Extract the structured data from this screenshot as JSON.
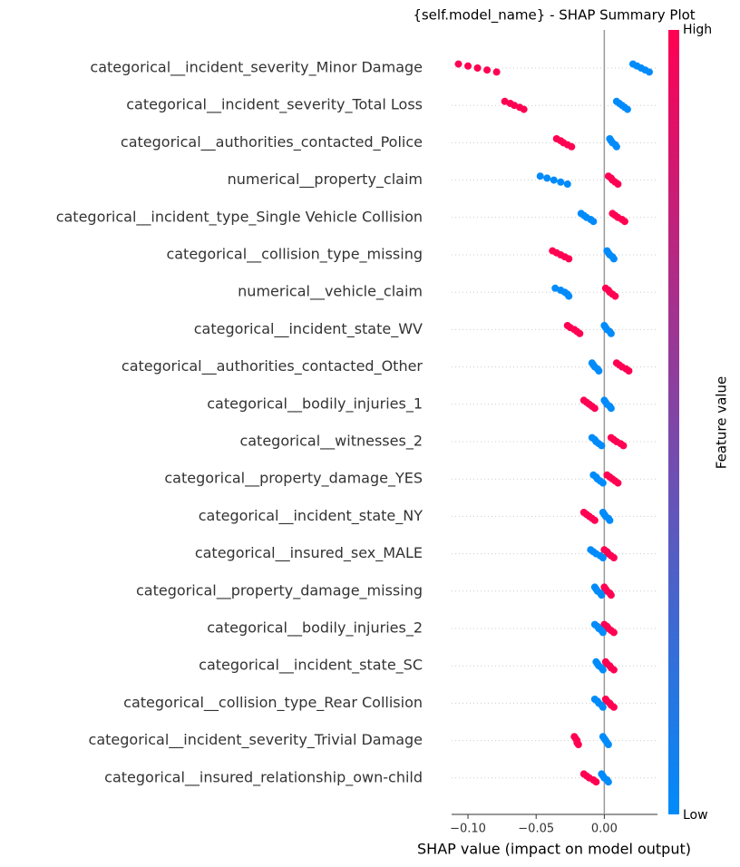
{
  "chart_data": {
    "type": "beeswarm",
    "title": "{self.model_name} - SHAP Summary Plot",
    "x_label": "SHAP value (impact on model output)",
    "colorbar_label": "Feature value",
    "categories": [
      "categorical__incident_severity_Minor Damage",
      "categorical__incident_severity_Total Loss",
      "categorical__authorities_contacted_Police",
      "numerical__property_claim",
      "categorical__incident_type_Single Vehicle Collision",
      "categorical__collision_type_missing",
      "numerical__vehicle_claim",
      "categorical__incident_state_WV",
      "categorical__authorities_contacted_Other",
      "categorical__bodily_injuries_1",
      "categorical__witnesses_2",
      "categorical__property_damage_YES",
      "categorical__incident_state_NY",
      "categorical__insured_sex_MALE",
      "categorical__property_damage_missing",
      "categorical__bodily_injuries_2",
      "categorical__incident_state_SC",
      "categorical__collision_type_Rear Collision",
      "categorical__incident_severity_Trivial Damage",
      "categorical__insured_relationship_own-child"
    ],
    "series": [
      {
        "name": "High",
        "color": "#ff0052",
        "values": [
          [
            -0.107,
            -0.1,
            -0.093,
            -0.086,
            -0.079
          ],
          [
            -0.073,
            -0.069,
            -0.066,
            -0.062,
            -0.059
          ],
          [
            -0.035,
            -0.032,
            -0.03,
            -0.027,
            -0.024
          ],
          [
            0.003,
            0.005,
            0.006,
            0.008,
            0.01
          ],
          [
            0.006,
            0.008,
            0.01,
            0.013,
            0.015
          ],
          [
            -0.038,
            -0.035,
            -0.032,
            -0.029,
            -0.026
          ],
          [
            0.001,
            0.003,
            0.004,
            0.006,
            0.008
          ],
          [
            -0.027,
            -0.025,
            -0.022,
            -0.02,
            -0.018
          ],
          [
            0.009,
            0.011,
            0.013,
            0.016,
            0.018
          ],
          [
            -0.015,
            -0.013,
            -0.011,
            -0.009,
            -0.007
          ],
          [
            0.005,
            0.007,
            0.009,
            0.012,
            0.014
          ],
          [
            0.002,
            0.004,
            0.006,
            0.008,
            0.01
          ],
          [
            -0.015,
            -0.013,
            -0.011,
            -0.009,
            -0.007
          ],
          [
            0.0,
            0.002,
            0.003,
            0.005,
            0.007
          ],
          [
            0.0,
            0.001,
            0.002,
            0.004,
            0.005
          ],
          [
            0.0,
            0.002,
            0.003,
            0.005,
            0.007
          ],
          [
            0.001,
            0.002,
            0.004,
            0.005,
            0.007
          ],
          [
            0.001,
            0.002,
            0.004,
            0.005,
            0.007
          ],
          [
            -0.022,
            -0.021,
            -0.02,
            -0.02,
            -0.019
          ],
          [
            -0.015,
            -0.013,
            -0.011,
            -0.008,
            -0.006
          ]
        ]
      },
      {
        "name": "Low",
        "color": "#008bfb",
        "values": [
          [
            0.021,
            0.024,
            0.027,
            0.03,
            0.033
          ],
          [
            0.009,
            0.011,
            0.013,
            0.015,
            0.017
          ],
          [
            0.004,
            0.005,
            0.006,
            0.008,
            0.009
          ],
          [
            -0.047,
            -0.042,
            -0.037,
            -0.032,
            -0.027
          ],
          [
            -0.017,
            -0.015,
            -0.013,
            -0.01,
            -0.008
          ],
          [
            0.002,
            0.003,
            0.004,
            0.006,
            0.007
          ],
          [
            -0.036,
            -0.032,
            -0.029,
            -0.027,
            -0.026
          ],
          [
            0.0,
            0.001,
            0.002,
            0.004,
            0.005
          ],
          [
            -0.009,
            -0.008,
            -0.007,
            -0.005,
            -0.004
          ],
          [
            0.0,
            0.001,
            0.002,
            0.004,
            0.005
          ],
          [
            -0.009,
            -0.007,
            -0.006,
            -0.004,
            -0.002
          ],
          [
            -0.008,
            -0.006,
            -0.005,
            -0.003,
            -0.001
          ],
          [
            -0.001,
            0.0,
            0.001,
            0.003,
            0.004
          ],
          [
            -0.01,
            -0.008,
            -0.006,
            -0.003,
            -0.001
          ],
          [
            -0.007,
            -0.006,
            -0.005,
            -0.003,
            -0.002
          ],
          [
            -0.007,
            -0.005,
            -0.004,
            -0.002,
            -0.001
          ],
          [
            -0.006,
            -0.005,
            -0.004,
            -0.002,
            -0.001
          ],
          [
            -0.007,
            -0.005,
            -0.004,
            -0.002,
            -0.001
          ],
          [
            -0.001,
            0.0,
            0.001,
            0.002,
            0.003
          ],
          [
            -0.002,
            -0.001,
            0.0,
            0.002,
            0.003
          ]
        ]
      }
    ],
    "xlim": [
      -0.112,
      0.039
    ],
    "xticks": [
      {
        "value": -0.1,
        "label": "−0.10"
      },
      {
        "value": -0.05,
        "label": "−0.05"
      },
      {
        "value": 0,
        "label": "0.00"
      }
    ]
  }
}
